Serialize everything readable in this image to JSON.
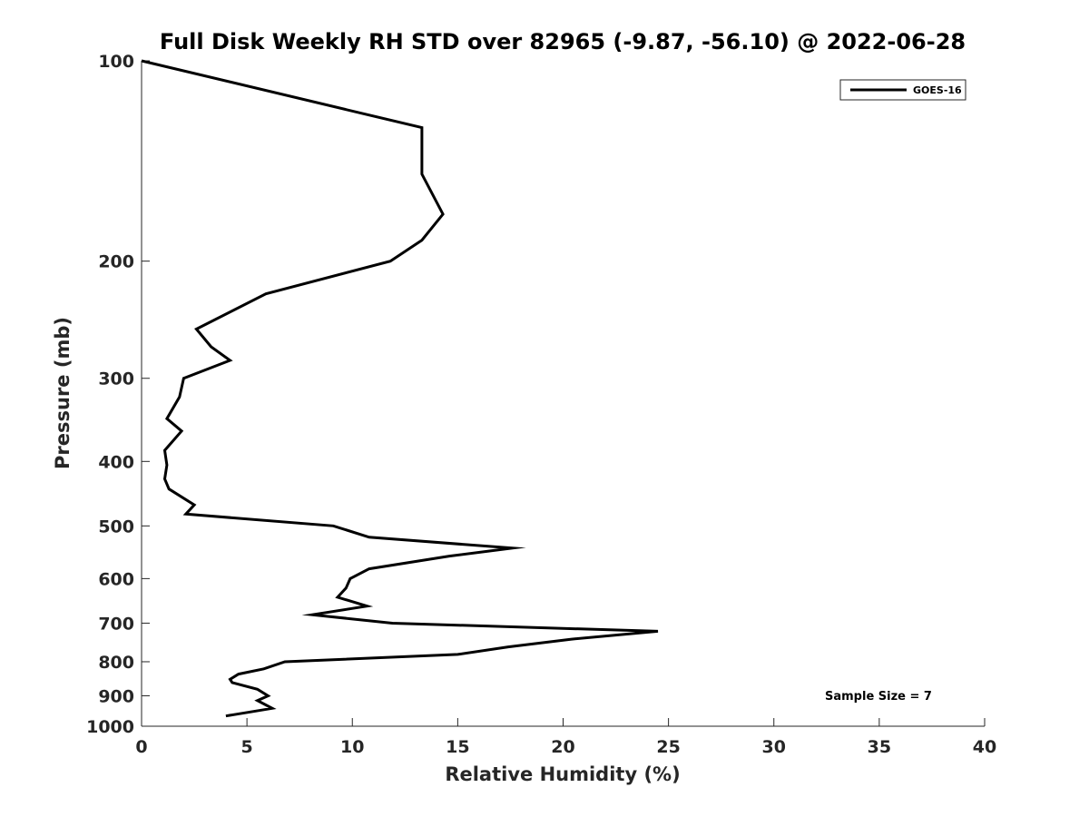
{
  "chart_data": {
    "type": "line",
    "title": "Full Disk Weekly RH STD over 82965 (-9.87, -56.10) @ 2022-06-28",
    "xlabel": "Relative Humidity (%)",
    "ylabel": "Pressure (mb)",
    "xlim": [
      0,
      40
    ],
    "ylim": [
      100,
      1000
    ],
    "y_scale": "log",
    "y_reversed": true,
    "x_ticks": [
      0,
      5,
      10,
      15,
      20,
      25,
      30,
      35,
      40
    ],
    "y_ticks": [
      100,
      200,
      300,
      400,
      500,
      600,
      700,
      800,
      900,
      1000
    ],
    "legend_position": "top-right",
    "grid": false,
    "annotation": "Sample Size = 7",
    "series": [
      {
        "name": "GOES-16",
        "color": "#000000",
        "points": [
          [
            0.0,
            100
          ],
          [
            13.3,
            126
          ],
          [
            13.3,
            148
          ],
          [
            14.3,
            170
          ],
          [
            13.3,
            186
          ],
          [
            11.8,
            200
          ],
          [
            5.9,
            224
          ],
          [
            2.6,
            253
          ],
          [
            3.3,
            269
          ],
          [
            4.2,
            282
          ],
          [
            2.0,
            300
          ],
          [
            1.8,
            320
          ],
          [
            1.2,
            345
          ],
          [
            1.9,
            360
          ],
          [
            1.1,
            385
          ],
          [
            1.2,
            405
          ],
          [
            1.1,
            425
          ],
          [
            1.3,
            440
          ],
          [
            2.5,
            465
          ],
          [
            2.1,
            480
          ],
          [
            9.1,
            500
          ],
          [
            10.8,
            520
          ],
          [
            17.6,
            540
          ],
          [
            14.6,
            555
          ],
          [
            10.8,
            580
          ],
          [
            9.9,
            600
          ],
          [
            9.7,
            620
          ],
          [
            9.3,
            640
          ],
          [
            10.7,
            660
          ],
          [
            8.1,
            680
          ],
          [
            11.9,
            700
          ],
          [
            24.5,
            720
          ],
          [
            20.4,
            740
          ],
          [
            17.4,
            760
          ],
          [
            15.0,
            780
          ],
          [
            6.8,
            800
          ],
          [
            5.8,
            820
          ],
          [
            4.6,
            835
          ],
          [
            4.2,
            850
          ],
          [
            4.3,
            860
          ],
          [
            5.5,
            880
          ],
          [
            6.0,
            900
          ],
          [
            5.5,
            915
          ],
          [
            6.2,
            940
          ],
          [
            4.0,
            965
          ]
        ]
      }
    ]
  }
}
